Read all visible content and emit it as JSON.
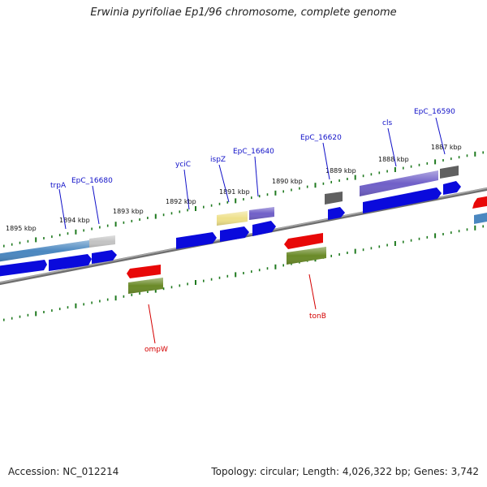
{
  "title": "Erwinia pyrifoliae Ep1/96 chromosome, complete genome",
  "accession": "Accession: NC_012214",
  "topology": "Topology: circular; Length: 4,026,322 bp; Genes: 3,742",
  "colors": {
    "backbone": "#808080",
    "tick": "#1f7a1f",
    "cds": "#0a0adc",
    "gene_steel": "#4a87c0",
    "gene_grey": "#c0c0c0",
    "gene_purple": "#7060c8",
    "gene_dark": "#606060",
    "gene_yellow": "#eee08a",
    "gene_red": "#e80808",
    "gene_olive": "#6a8a28",
    "label_top": "#1010c8",
    "label_bottom": "#d40000"
  },
  "kbp_labels": [
    "1895 kbp",
    "1894 kbp",
    "1893 kbp",
    "1892 kbp",
    "1891 kbp",
    "1890 kbp",
    "1889 kbp",
    "1888 kbp",
    "1887 kbp"
  ],
  "top_gene_labels": [
    "trpA",
    "EpC_16680",
    "yciC",
    "ispZ",
    "EpC_16640",
    "EpC_16620",
    "cls",
    "EpC_16590"
  ],
  "bottom_gene_labels": [
    "ompW",
    "tonB"
  ]
}
